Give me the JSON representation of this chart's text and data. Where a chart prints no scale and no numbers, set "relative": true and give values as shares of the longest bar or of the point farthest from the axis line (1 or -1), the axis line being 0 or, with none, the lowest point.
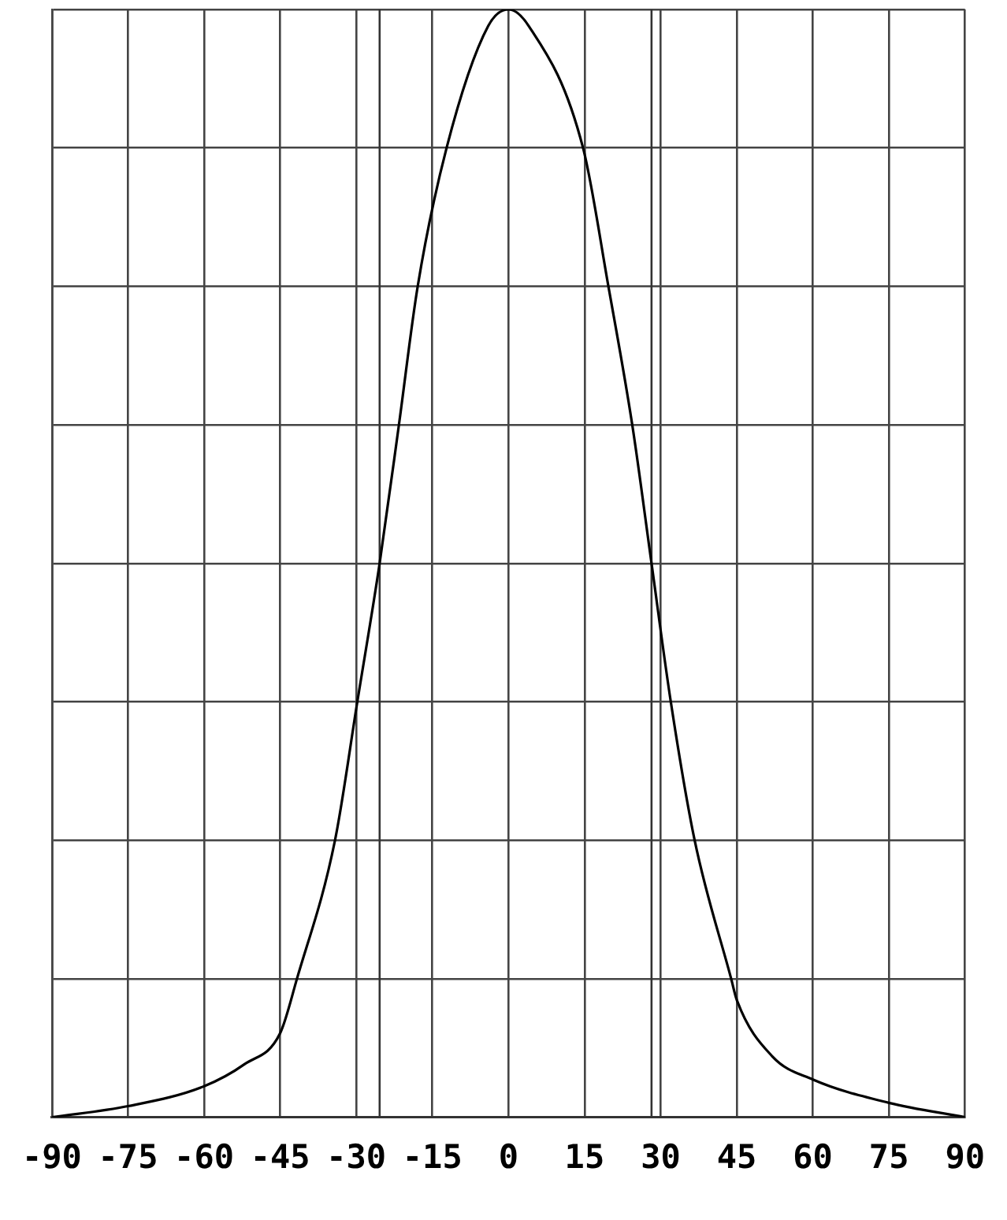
{
  "chart_data": {
    "type": "line",
    "relative": true,
    "grid": true,
    "marker": "none",
    "line_style": "solid",
    "xlim": [
      -90,
      90
    ],
    "xticks": [
      -90,
      -75,
      -60,
      -45,
      -30,
      -15,
      0,
      15,
      30,
      45,
      60,
      75,
      90
    ],
    "series": [
      {
        "color": "#000000",
        "x": [
          -90,
          -75,
          -60,
          -52,
          -45,
          -41.7,
          -34.2,
          -29.8,
          -25.4,
          -21.6,
          -17.9,
          -12.2,
          -4,
          0,
          4,
          14.7,
          19.7,
          24.4,
          28.2,
          32,
          36.7,
          43.9,
          45,
          52,
          60,
          75,
          90
        ],
        "values": [
          0,
          0.01,
          0.028,
          0.048,
          0.076,
          0.125,
          0.25,
          0.375,
          0.5,
          0.625,
          0.75,
          0.875,
          0.985,
          1,
          0.985,
          0.875,
          0.75,
          0.625,
          0.5,
          0.375,
          0.25,
          0.125,
          0.106,
          0.055,
          0.034,
          0.013,
          0
        ]
      }
    ],
    "ref_lines": [
      {
        "axis": "x",
        "value": -25.4,
        "color": "#333333"
      },
      {
        "axis": "x",
        "value": 28.2,
        "color": "#333333"
      }
    ]
  }
}
